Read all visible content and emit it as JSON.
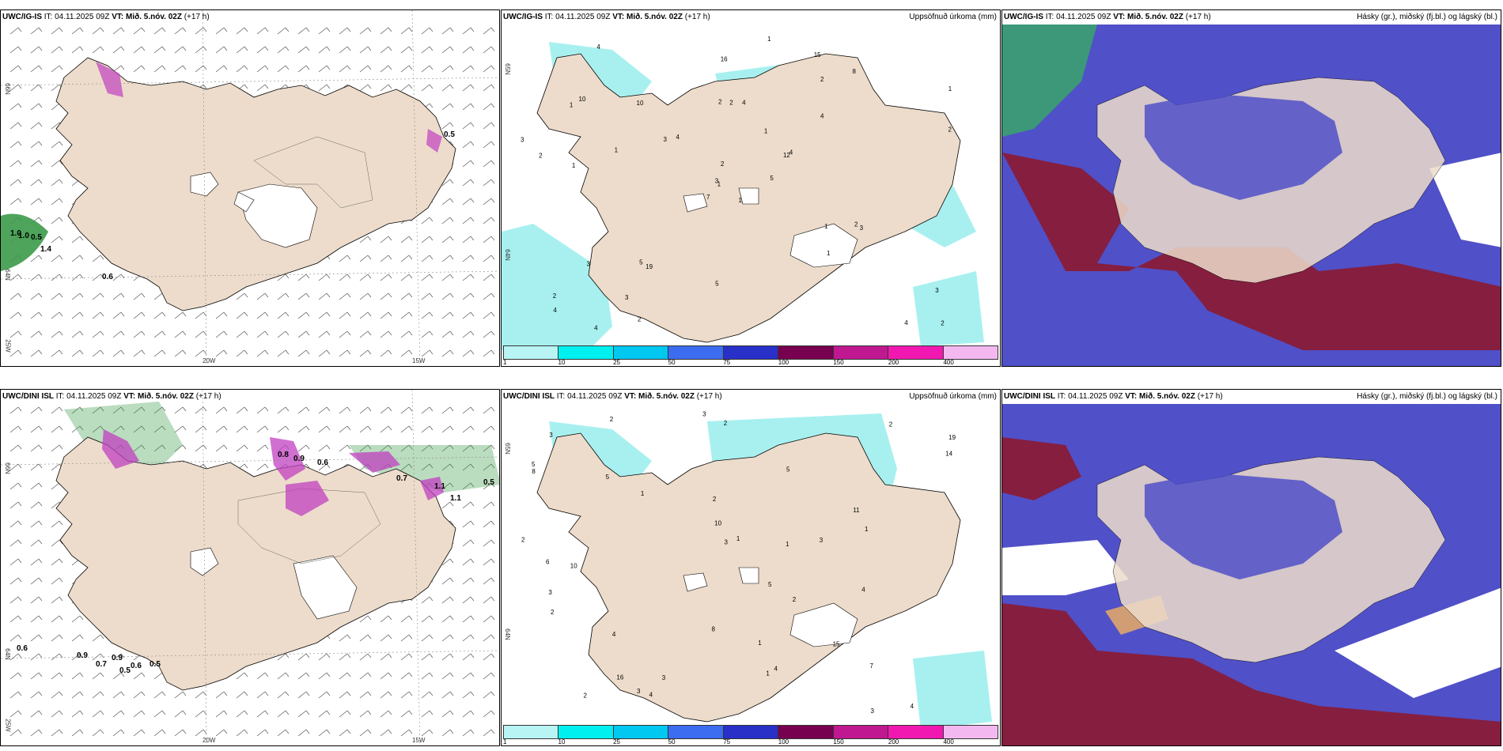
{
  "rows": [
    {
      "model": "UWC/IG-IS",
      "panels": [
        {
          "kind": "wind",
          "model_label": "UWC/IG-IS",
          "it": "IT: 04.11.2025 09Z",
          "vt_label": "VT:",
          "vt_value": "Mið. 5.nóv. 02Z",
          "lead": "(+17 h)",
          "axis": {
            "lat_top": "66N",
            "lat_bot": "64N",
            "lat_bot2": "25W",
            "lon1": "20W",
            "lon2": "15W"
          },
          "values": [
            "1.0",
            "1.0",
            "0.5",
            "1.4",
            "0.6",
            "0.5"
          ]
        },
        {
          "kind": "precip",
          "model_label": "UWC/IG-IS",
          "it": "IT: 04.11.2025 09Z",
          "vt_label": "VT:",
          "vt_value": "Mið. 5.nóv. 02Z",
          "lead": "(+17 h)",
          "right_title": "Uppsöfnuð úrkoma (mm)",
          "axis": {
            "lat_top": "65N",
            "lat_mid": "64N"
          },
          "numbers": [
            "1",
            "1",
            "1",
            "2",
            "12",
            "19",
            "15",
            "4",
            "2",
            "5",
            "4",
            "2",
            "1",
            "1",
            "7",
            "4",
            "4",
            "2",
            "1",
            "3",
            "4",
            "4",
            "3",
            "2",
            "4",
            "3",
            "10",
            "16",
            "2",
            "1",
            "2",
            "3",
            "5",
            "2",
            "10",
            "8",
            "5",
            "4",
            "3",
            "2",
            "1",
            "3",
            "1",
            "1",
            "2",
            "3"
          ]
        },
        {
          "kind": "cloud",
          "model_label": "UWC/IG-IS",
          "it": "IT: 04.11.2025 09Z",
          "vt_label": "VT:",
          "vt_value": "Mið. 5.nóv. 02Z",
          "lead": "(+17 h)",
          "right_title": "Hásky (gr.), miðský (fj.bl.) og lágský (bl.)"
        }
      ]
    },
    {
      "model": "UWC/DINI ISL",
      "panels": [
        {
          "kind": "wind",
          "model_label": "UWC/DINI ISL",
          "it": "IT: 04.11.2025 09Z",
          "vt_label": "VT:",
          "vt_value": "Mið. 5.nóv. 02Z",
          "lead": "(+17 h)",
          "axis": {
            "lat_top": "66N",
            "lat_bot": "64N",
            "lat_bot2": "25W",
            "lon1": "20W",
            "lon2": "15W"
          },
          "values": [
            "0.9",
            "0.7",
            "0.9",
            "0.5",
            "0.6",
            "0.5",
            "0.8",
            "0.9",
            "0.6",
            "0.7",
            "1.1",
            "1.1",
            "0.5",
            "0.6"
          ]
        },
        {
          "kind": "precip",
          "model_label": "UWC/DINI ISL",
          "it": "IT: 04.11.2025 09Z",
          "vt_label": "VT:",
          "vt_value": "Mið. 5.nóv. 02Z",
          "lead": "(+17 h)",
          "right_title": "Uppsöfnuð úrkoma (mm)",
          "axis": {
            "lat_top": "65N",
            "lat_mid": "64N"
          },
          "numbers": [
            "2",
            "2",
            "11",
            "19",
            "5",
            "4",
            "10",
            "5",
            "2",
            "2",
            "1",
            "4",
            "3",
            "8",
            "5",
            "4",
            "4",
            "6",
            "5",
            "8",
            "15",
            "7",
            "14",
            "10",
            "16",
            "3",
            "2",
            "2",
            "4",
            "1",
            "3",
            "3",
            "1",
            "2",
            "3",
            "2",
            "1",
            "3",
            "3",
            "1",
            "1",
            "3"
          ]
        },
        {
          "kind": "cloud",
          "model_label": "UWC/DINI ISL",
          "it": "IT: 04.11.2025 09Z",
          "vt_label": "VT:",
          "vt_value": "Mið. 5.nóv. 02Z",
          "lead": "(+17 h)",
          "right_title": "Hásky (gr.), miðský (fj.bl.) og lágský (bl.)"
        }
      ]
    }
  ],
  "colorbar": {
    "ticks": [
      "1",
      "10",
      "25",
      "50",
      "75",
      "100",
      "150",
      "200",
      "400"
    ],
    "colors": [
      "#b8f4f4",
      "#00f0f0",
      "#00c8f0",
      "#3c6cf0",
      "#2830c8",
      "#780050",
      "#c01890",
      "#f018b0",
      "#f4b8f0"
    ]
  },
  "colors": {
    "land": "#eddccb",
    "wind_green": "#3a9a48",
    "precip_cyan": "#a8f0f0",
    "cloud_blue": "#5050c8",
    "cloud_red": "#8c1830"
  }
}
